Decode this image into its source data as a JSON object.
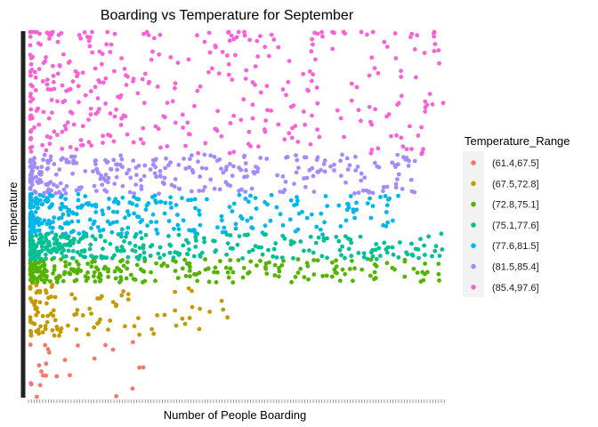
{
  "chart_data": {
    "type": "scatter",
    "title": "Boarding vs Temperature for September",
    "xlabel": "Number of People Boarding",
    "ylabel": "Temperature",
    "x_tick_labels": "hidden (dense ticks, no labels)",
    "y_tick_labels": "hidden",
    "xlim": [
      0,
      1
    ],
    "ylim": [
      61.4,
      97.6
    ],
    "grid": false,
    "legend": {
      "title": "Temperature_Range",
      "position": "right",
      "entries": [
        {
          "label": "(61.4,67.5]",
          "color": "#F8766D"
        },
        {
          "label": "(67.5,72.8]",
          "color": "#C49A00"
        },
        {
          "label": "(72.8,75.1]",
          "color": "#53B400"
        },
        {
          "label": "(75.1,77.6]",
          "color": "#00C094"
        },
        {
          "label": "(77.6,81.5]",
          "color": "#00B6EB"
        },
        {
          "label": "(81.5,85.4]",
          "color": "#A58AFF"
        },
        {
          "label": "(85.4,97.6]",
          "color": "#FB61D7"
        }
      ]
    },
    "series": [
      {
        "name": "(61.4,67.5]",
        "color": "#F8766D",
        "y_range": [
          61.4,
          67.5
        ],
        "x_extent": 0.3,
        "point_count": 25
      },
      {
        "name": "(67.5,72.8]",
        "color": "#C49A00",
        "y_range": [
          67.5,
          72.8
        ],
        "x_extent": 0.48,
        "point_count": 110
      },
      {
        "name": "(72.8,75.1]",
        "color": "#53B400",
        "y_range": [
          72.8,
          75.1
        ],
        "x_extent": 1.0,
        "point_count": 260
      },
      {
        "name": "(75.1,77.6]",
        "color": "#00C094",
        "y_range": [
          75.1,
          77.6
        ],
        "x_extent": 1.0,
        "point_count": 330
      },
      {
        "name": "(77.6,81.5]",
        "color": "#00B6EB",
        "y_range": [
          77.6,
          81.5
        ],
        "x_extent": 0.9,
        "point_count": 300
      },
      {
        "name": "(81.5,85.4]",
        "color": "#A58AFF",
        "y_range": [
          81.5,
          85.4
        ],
        "x_extent": 0.95,
        "point_count": 290
      },
      {
        "name": "(85.4,97.6]",
        "color": "#FB61D7",
        "y_range": [
          85.4,
          97.6
        ],
        "x_extent": 1.0,
        "point_count": 380
      }
    ]
  }
}
